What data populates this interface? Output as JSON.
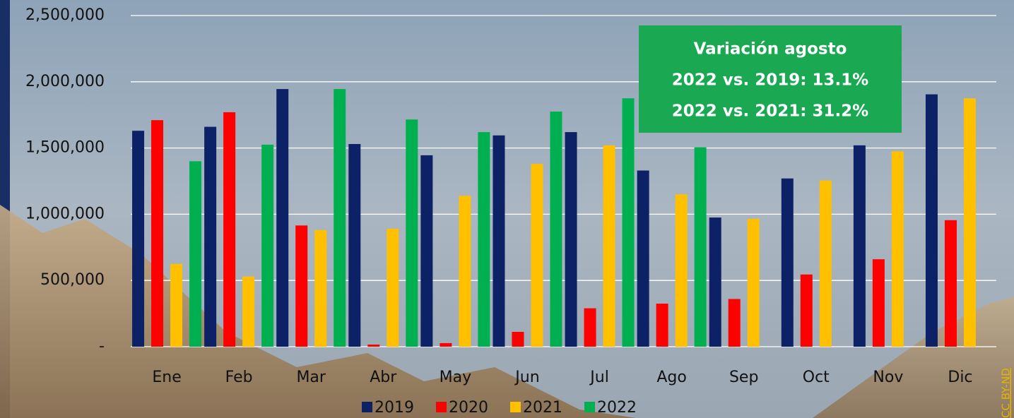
{
  "chart_data": {
    "type": "bar",
    "categories": [
      "Ene",
      "Feb",
      "Mar",
      "Abr",
      "May",
      "Jun",
      "Jul",
      "Ago",
      "Sep",
      "Oct",
      "Nov",
      "Dic"
    ],
    "series": [
      {
        "name": "2019",
        "color": "#0c2166",
        "values": [
          1630000,
          1660000,
          1945000,
          1530000,
          1445000,
          1595000,
          1620000,
          1330000,
          975000,
          1270000,
          1520000,
          1905000
        ]
      },
      {
        "name": "2020",
        "color": "#ff0000",
        "values": [
          1710000,
          1770000,
          915000,
          16000,
          27000,
          112000,
          290000,
          325000,
          360000,
          545000,
          660000,
          955000
        ]
      },
      {
        "name": "2021",
        "color": "#ffc000",
        "values": [
          625000,
          530000,
          880000,
          890000,
          1140000,
          1380000,
          1520000,
          1150000,
          965000,
          1255000,
          1475000,
          1875000
        ]
      },
      {
        "name": "2022",
        "color": "#00b050",
        "values": [
          1400000,
          1525000,
          1945000,
          1715000,
          1620000,
          1775000,
          1875000,
          1505000,
          null,
          null,
          null,
          null
        ]
      }
    ],
    "ylim": [
      0,
      2500000
    ],
    "yticks": [
      {
        "value": 0,
        "label": "-"
      },
      {
        "value": 500000,
        "label": "500,000"
      },
      {
        "value": 1000000,
        "label": "1,000,000"
      },
      {
        "value": 1500000,
        "label": "1,500,000"
      },
      {
        "value": 2000000,
        "label": "2,000,000"
      },
      {
        "value": 2500000,
        "label": "2,500,000"
      }
    ],
    "grid": true,
    "legend": "bottom",
    "annotation": [
      "Variación agosto",
      "2022 vs. 2019: 13.1%",
      "2022 vs. 2021: 31.2%"
    ],
    "credit": "CC BY-ND"
  }
}
